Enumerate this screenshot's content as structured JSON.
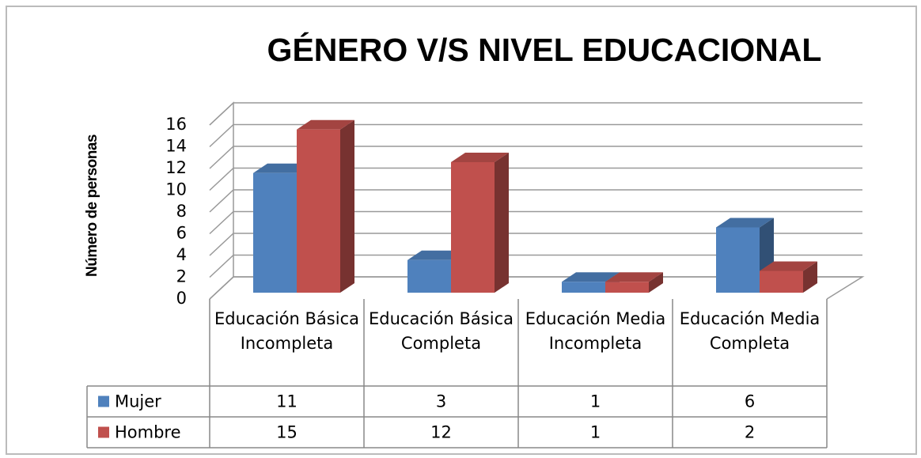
{
  "chart_data": {
    "type": "bar3d",
    "title": "GÉNERO V/S NIVEL EDUCACIONAL",
    "y_label": "Número de personas",
    "categories": [
      "Educación Básica Incompleta",
      "Educación Básica Completa",
      "Educación Media Incompleta",
      "Educación Media Completa"
    ],
    "series": [
      {
        "name": "Mujer",
        "color": "#4f81bd",
        "values": [
          11,
          3,
          1,
          6
        ]
      },
      {
        "name": "Hombre",
        "color": "#c0504d",
        "values": [
          15,
          12,
          1,
          2
        ]
      }
    ],
    "ylim": [
      0,
      16
    ],
    "yticks": [
      0,
      2,
      4,
      6,
      8,
      10,
      12,
      14,
      16
    ],
    "grid": true,
    "data_table": true
  }
}
